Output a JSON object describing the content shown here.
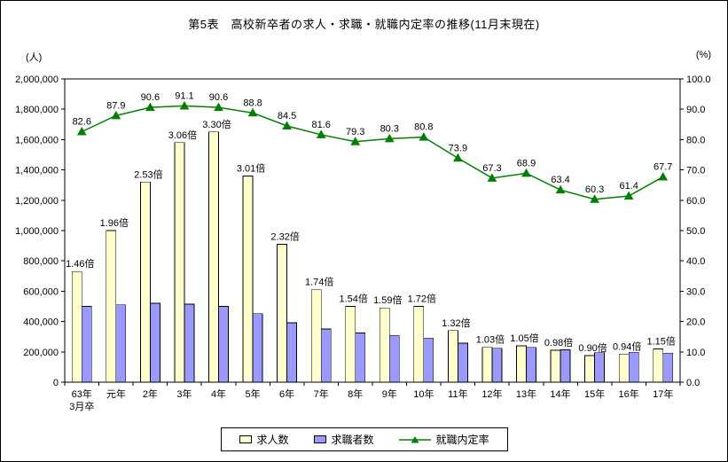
{
  "title": "第5表　高校新卒者の求人・求職・就職内定率の推移(11月末現在)",
  "left_axis_unit": "(人)",
  "right_axis_unit": "(%)",
  "legend": {
    "kyujin": "求人数",
    "kyushoku": "求職者数",
    "naitei": "就職内定率"
  },
  "colors": {
    "kyujin_bar": "#FFFFCC",
    "kyushoku_bar": "#9999FF",
    "naitei_line": "#008000"
  },
  "chart_data": {
    "type": "bar+line",
    "categories": [
      "63年",
      "元年",
      "2年",
      "3年",
      "4年",
      "5年",
      "6年",
      "7年",
      "8年",
      "9年",
      "10年",
      "11年",
      "12年",
      "13年",
      "14年",
      "15年",
      "16年",
      "17年"
    ],
    "category_sub_label": "3月卒",
    "category_sub_index": 0,
    "series": [
      {
        "name": "求人数",
        "type": "bar",
        "axis": "left",
        "color": "#FFFFCC",
        "values": [
          730000,
          1000000,
          1320000,
          1580000,
          1650000,
          1360000,
          910000,
          610000,
          500000,
          490000,
          500000,
          340000,
          230000,
          240000,
          210000,
          175000,
          185000,
          220000
        ]
      },
      {
        "name": "求職者数",
        "type": "bar",
        "axis": "left",
        "color": "#9999FF",
        "values": [
          500000,
          510000,
          520000,
          515000,
          500000,
          452000,
          392000,
          351000,
          325000,
          308000,
          291000,
          258000,
          223000,
          229000,
          214000,
          194000,
          197000,
          191000
        ]
      },
      {
        "name": "就職内定率",
        "type": "line",
        "axis": "right",
        "color": "#008000",
        "values": [
          82.6,
          87.9,
          90.6,
          91.1,
          90.6,
          88.8,
          84.5,
          81.6,
          79.3,
          80.3,
          80.8,
          73.9,
          67.3,
          68.9,
          63.4,
          60.3,
          61.4,
          67.7
        ]
      }
    ],
    "ratio_labels": [
      "1.46倍",
      "1.96倍",
      "2.53倍",
      "3.06倍",
      "3.30倍",
      "3.01倍",
      "2.32倍",
      "1.74倍",
      "1.54倍",
      "1.59倍",
      "1.72倍",
      "1.32倍",
      "1.03倍",
      "1.05倍",
      "0.98倍",
      "0.90倍",
      "0.94倍",
      "1.15倍"
    ],
    "rate_labels": [
      "82.6",
      "87.9",
      "90.6",
      "91.1",
      "90.6",
      "88.8",
      "84.5",
      "81.6",
      "79.3",
      "80.3",
      "80.8",
      "73.9",
      "67.3",
      "68.9",
      "63.4",
      "60.3",
      "61.4",
      "67.7"
    ],
    "left_axis": {
      "min": 0,
      "max": 2000000,
      "step": 200000,
      "unit": "人"
    },
    "right_axis": {
      "min": 0,
      "max": 100,
      "step": 10,
      "unit": "%"
    },
    "grid": false,
    "legend_position": "bottom"
  }
}
